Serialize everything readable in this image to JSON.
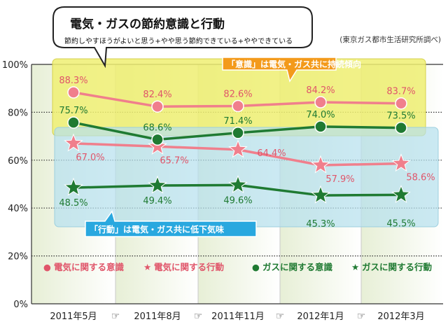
{
  "chart_data": {
    "type": "line",
    "title": "電気・ガスの節約意識と行動",
    "subtitle": "節約しやすほうがよいと思う+やや思う節約できている+ややできている",
    "source": "(東京ガス都市生活研究所調べ)",
    "categories": [
      "2011年5月",
      "2011年8月",
      "2011年11月",
      "2012年1月",
      "2012年3月"
    ],
    "arrow_glyph": "☞",
    "ylim": [
      0,
      100
    ],
    "yticks": [
      "0%",
      "20%",
      "40%",
      "60%",
      "80%",
      "100%"
    ],
    "series": [
      {
        "name": "電気に関する意識",
        "marker": "circle",
        "color": "#f07f8c",
        "text_color": "#e0556a",
        "values": [
          88.3,
          82.4,
          82.6,
          84.2,
          83.7
        ],
        "labels": [
          "88.3%",
          "82.4%",
          "82.6%",
          "84.2%",
          "83.7%"
        ]
      },
      {
        "name": "電気に関する行動",
        "marker": "star",
        "color": "#f07f8c",
        "text_color": "#e0556a",
        "values": [
          67.0,
          65.7,
          64.4,
          57.9,
          58.6
        ],
        "labels": [
          "67.0%",
          "65.7%",
          "64.4%",
          "57.9%",
          "58.6%"
        ]
      },
      {
        "name": "ガスに関する意識",
        "marker": "circle",
        "color": "#1f7a32",
        "text_color": "#1f7a32",
        "values": [
          75.7,
          68.6,
          71.4,
          74.0,
          73.5
        ],
        "labels": [
          "75.7%",
          "68.6%",
          "71.4%",
          "74.0%",
          "73.5%"
        ]
      },
      {
        "name": "ガスに関する行動",
        "marker": "star",
        "color": "#1f7a32",
        "text_color": "#1f7a32",
        "values": [
          48.5,
          49.4,
          49.6,
          45.3,
          45.5
        ],
        "labels": [
          "48.5%",
          "49.4%",
          "49.6%",
          "45.3%",
          "45.5%"
        ]
      }
    ],
    "legend": [
      {
        "symbol": "●",
        "text": "電気に関する意識",
        "color": "#e0556a"
      },
      {
        "symbol": "★",
        "text": "電気に関する行動",
        "color": "#e0556a"
      },
      {
        "symbol": "●",
        "text": "ガスに関する意識",
        "color": "#1f7a32"
      },
      {
        "symbol": "★",
        "text": "ガスに関する行動",
        "color": "#1f7a32"
      }
    ],
    "annotations": {
      "awareness": "「意識」は電気・ガス共に持続傾向",
      "action": "「行動」は電気・ガス共に低下気味"
    }
  }
}
